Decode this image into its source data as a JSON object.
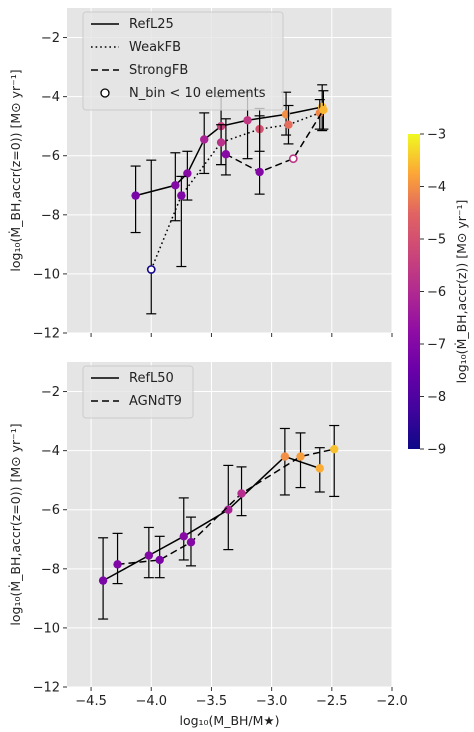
{
  "chart_data": [
    {
      "type": "line",
      "panel": "top",
      "xlabel": "",
      "ylabel": "log₁₀(Ṁ_BH,accr(z=0)) [M⊙ yr⁻¹]",
      "xlim": [
        -4.7,
        -2.0
      ],
      "ylim": [
        -12,
        -1
      ],
      "yticks": [
        -2,
        -4,
        -6,
        -8,
        -10,
        -12
      ],
      "yticklabels": [
        "−2",
        "−4",
        "−6",
        "−8",
        "−10",
        "−12"
      ],
      "grid": true,
      "legend_position": "top-left",
      "legend": [
        "RefL25",
        "WeakFB",
        "StrongFB",
        "N_bin < 10 elements"
      ],
      "series": [
        {
          "name": "RefL25",
          "linestyle": "solid",
          "points": [
            {
              "x": -4.13,
              "y": -7.35,
              "lo": -8.6,
              "hi": -6.35,
              "c": -7.2
            },
            {
              "x": -3.8,
              "y": -7.0,
              "lo": -8.2,
              "hi": -5.9,
              "c": -7.0
            },
            {
              "x": -3.7,
              "y": -6.6,
              "lo": -7.5,
              "hi": -5.85,
              "c": -6.9
            },
            {
              "x": -3.56,
              "y": -5.45,
              "lo": -6.6,
              "hi": -4.55,
              "c": -6.2
            },
            {
              "x": -3.42,
              "y": -5.0,
              "lo": -6.3,
              "hi": -4.0,
              "c": -5.4
            },
            {
              "x": -3.2,
              "y": -4.8,
              "lo": -6.1,
              "hi": -3.85,
              "c": -5.6
            },
            {
              "x": -2.88,
              "y": -4.6,
              "lo": -5.3,
              "hi": -3.85,
              "c": -4.0
            },
            {
              "x": -2.58,
              "y": -4.35,
              "lo": -5.15,
              "hi": -3.6,
              "c": -3.55
            }
          ]
        },
        {
          "name": "WeakFB",
          "linestyle": "dotted",
          "points": [
            {
              "x": -4.0,
              "y": -9.85,
              "lo": -11.35,
              "hi": -6.15,
              "c": -8.9,
              "open": true
            },
            {
              "x": -3.75,
              "y": -7.35,
              "lo": -9.75,
              "hi": -6.7,
              "c": -7.1
            },
            {
              "x": -3.42,
              "y": -5.55,
              "lo": -6.3,
              "hi": -4.95,
              "c": -5.8
            },
            {
              "x": -3.1,
              "y": -5.1,
              "lo": -5.85,
              "hi": -4.4,
              "c": -5.0
            },
            {
              "x": -2.86,
              "y": -4.95,
              "lo": -5.6,
              "hi": -4.3,
              "c": -4.4
            },
            {
              "x": -2.6,
              "y": -4.55,
              "lo": -5.1,
              "hi": -4.1,
              "c": -4.1
            }
          ]
        },
        {
          "name": "StrongFB",
          "linestyle": "dashed",
          "points": [
            {
              "x": -3.38,
              "y": -5.95,
              "lo": -6.65,
              "hi": -4.75,
              "c": -6.9
            },
            {
              "x": -3.1,
              "y": -6.55,
              "lo": -7.3,
              "hi": -4.65,
              "c": -7.0
            },
            {
              "x": -2.82,
              "y": -6.1,
              "lo": -6.1,
              "hi": -6.1,
              "c": -5.7,
              "open": true
            },
            {
              "x": -2.57,
              "y": -4.45,
              "lo": -5.1,
              "hi": -3.8,
              "c": -3.6
            }
          ]
        }
      ]
    },
    {
      "type": "line",
      "panel": "bottom",
      "xlabel": "log₁₀(M_BH/M★)",
      "ylabel": "log₁₀(Ṁ_BH,accr(z=0)) [M⊙ yr⁻¹]",
      "xlim": [
        -4.7,
        -2.0
      ],
      "ylim": [
        -12,
        -1
      ],
      "xticks": [
        -4.5,
        -4.0,
        -3.5,
        -3.0,
        -2.5,
        -2.0
      ],
      "xticklabels": [
        "−4.5",
        "−4.0",
        "−3.5",
        "−3.0",
        "−2.5",
        "−2.0"
      ],
      "yticks": [
        -2,
        -4,
        -6,
        -8,
        -10,
        -12
      ],
      "yticklabels": [
        "−2",
        "−4",
        "−6",
        "−8",
        "−10",
        "−12"
      ],
      "grid": true,
      "legend_position": "top-left",
      "legend": [
        "RefL50",
        "AGNdT9"
      ],
      "series": [
        {
          "name": "RefL50",
          "linestyle": "solid",
          "points": [
            {
              "x": -4.4,
              "y": -8.4,
              "lo": -9.7,
              "hi": -6.95,
              "c": -7.15
            },
            {
              "x": -4.02,
              "y": -7.55,
              "lo": -8.3,
              "hi": -6.6,
              "c": -7.0
            },
            {
              "x": -3.73,
              "y": -6.9,
              "lo": -7.7,
              "hi": -5.6,
              "c": -6.9
            },
            {
              "x": -3.36,
              "y": -6.0,
              "lo": -7.35,
              "hi": -4.5,
              "c": -6.2
            },
            {
              "x": -2.89,
              "y": -4.2,
              "lo": -5.5,
              "hi": -3.25,
              "c": -4.0
            },
            {
              "x": -2.6,
              "y": -4.6,
              "lo": -5.4,
              "hi": -3.9,
              "c": -3.7
            }
          ]
        },
        {
          "name": "AGNdT9",
          "linestyle": "dashed",
          "points": [
            {
              "x": -4.28,
              "y": -7.85,
              "lo": -8.5,
              "hi": -6.8,
              "c": -7.05
            },
            {
              "x": -3.93,
              "y": -7.7,
              "lo": -8.3,
              "hi": -6.9,
              "c": -7.15
            },
            {
              "x": -3.67,
              "y": -7.1,
              "lo": -7.9,
              "hi": -6.25,
              "c": -6.95
            },
            {
              "x": -3.25,
              "y": -5.45,
              "lo": -6.2,
              "hi": -4.55,
              "c": -5.9
            },
            {
              "x": -2.76,
              "y": -4.2,
              "lo": -5.25,
              "hi": -3.4,
              "c": -3.85
            },
            {
              "x": -2.48,
              "y": -3.95,
              "lo": -5.55,
              "hi": -3.15,
              "c": -3.5
            }
          ]
        }
      ]
    }
  ],
  "colorbar": {
    "label": "log₁₀(Ṁ_BH,accr(z)) [M⊙ yr⁻¹]",
    "range": [
      -9,
      -3
    ],
    "ticks": [
      -3,
      -4,
      -5,
      -6,
      -7,
      -8,
      -9
    ],
    "ticklabels": [
      "−3",
      "−4",
      "−5",
      "−6",
      "−7",
      "−8",
      "−9"
    ],
    "colormap": "plasma"
  },
  "colors": {
    "panel_bg": "#e5e5e5",
    "grid": "#ffffff",
    "line": "#000000"
  }
}
